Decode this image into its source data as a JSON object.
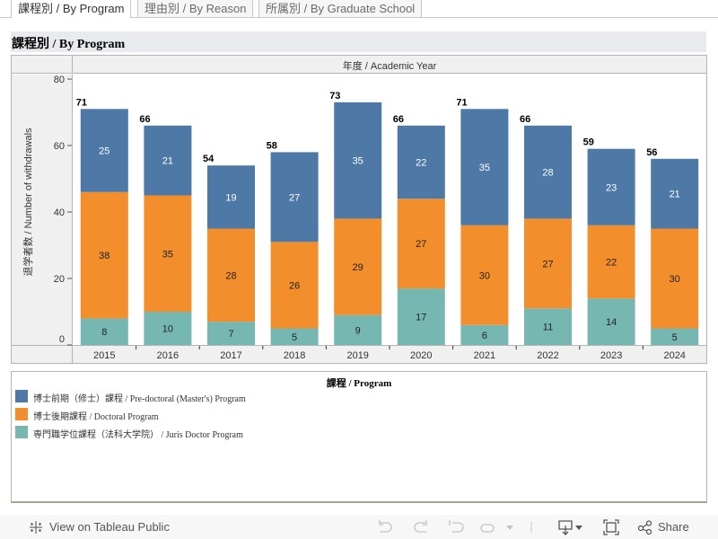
{
  "tabs": [
    {
      "label": "課程別 / By Program",
      "active": true
    },
    {
      "label": "理由別 / By Reason",
      "active": false
    },
    {
      "label": "所属別 / By Graduate School",
      "active": false
    }
  ],
  "title": "課程別 / By Program",
  "column_header": "年度 / Academic Year",
  "legend": {
    "title": "課程 / Program",
    "items": [
      {
        "label": "博士前期（修士）課程 / Pre-doctoral (Master's) Program",
        "color": "#4e79a7"
      },
      {
        "label": "博士後期課程 / Doctoral Program",
        "color": "#f28e2b"
      },
      {
        "label": "専門職学位課程（法科大学院） / Juris Doctor Program",
        "color": "#76b7b2"
      }
    ]
  },
  "footer": {
    "tableau_link": "View on Tableau Public",
    "share_label": "Share"
  },
  "chart_data": {
    "type": "bar",
    "stacked": true,
    "title": "課程別 / By Program",
    "xlabel": "年度 / Academic Year",
    "ylabel": "退学者数 / Number of withdrawals",
    "categories": [
      "2015",
      "2016",
      "2017",
      "2018",
      "2019",
      "2020",
      "2021",
      "2022",
      "2023",
      "2024"
    ],
    "ylim": [
      0,
      80
    ],
    "yticks": [
      0,
      20,
      40,
      60,
      80
    ],
    "grid": false,
    "legend_position": "bottom",
    "series": [
      {
        "name": "専門職学位課程（法科大学院） / Juris Doctor Program",
        "color": "#76b7b2",
        "label_color": "#222222",
        "values": [
          8,
          10,
          7,
          5,
          9,
          17,
          6,
          11,
          14,
          5
        ]
      },
      {
        "name": "博士後期課程 / Doctoral Program",
        "color": "#f28e2b",
        "label_color": "#222222",
        "values": [
          38,
          35,
          28,
          26,
          29,
          27,
          30,
          27,
          22,
          30
        ]
      },
      {
        "name": "博士前期（修士）課程 / Pre-doctoral (Master's) Program",
        "color": "#4e79a7",
        "label_color": "#ffffff",
        "values": [
          25,
          21,
          19,
          27,
          35,
          22,
          35,
          28,
          23,
          21
        ]
      }
    ],
    "totals": [
      71,
      66,
      54,
      58,
      73,
      66,
      71,
      66,
      59,
      56
    ]
  }
}
